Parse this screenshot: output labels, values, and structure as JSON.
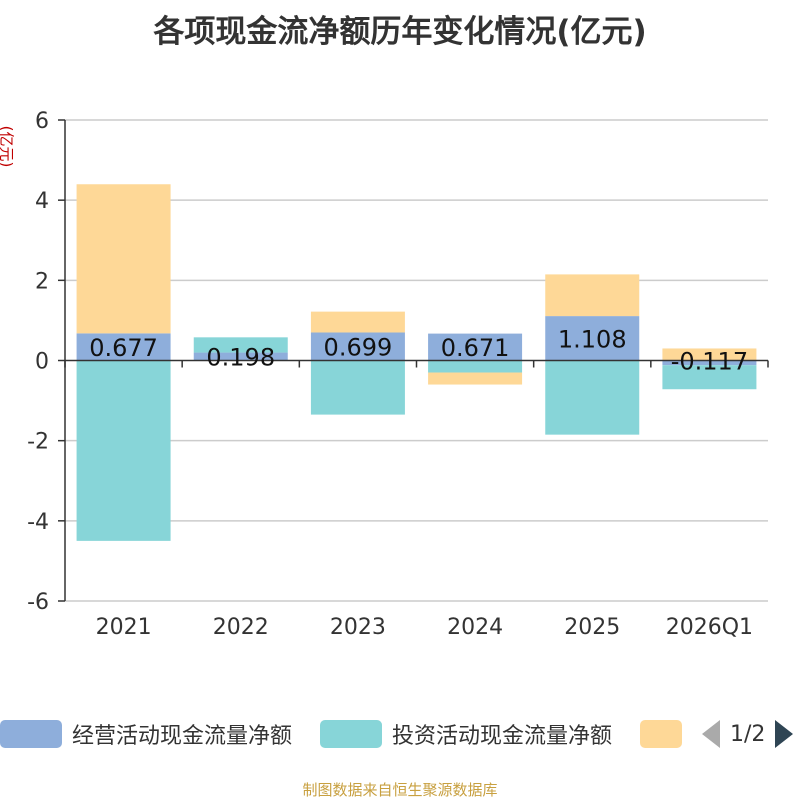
{
  "title": "各项现金流净额历年变化情况(亿元)",
  "y_unit": "(亿元)",
  "source": "制图数据来自恒生聚源数据库",
  "legend": {
    "page": "1/2"
  },
  "colors": {
    "operating": "#8eaedb",
    "investing": "#87d5d8",
    "financing": "#fed897",
    "grid": "#cccccc",
    "axis": "#333333"
  },
  "chart_data": {
    "type": "bar",
    "stacked": true,
    "title": "各项现金流净额历年变化情况(亿元)",
    "ylabel": "(亿元)",
    "ylim": [
      -6,
      6
    ],
    "yticks": [
      6,
      4,
      2,
      0,
      -2,
      -4,
      -6
    ],
    "grid": true,
    "categories": [
      "2021",
      "2022",
      "2023",
      "2024",
      "2025",
      "2026Q1"
    ],
    "series": [
      {
        "name": "经营活动现金流量净额",
        "values": [
          0.677,
          0.198,
          0.699,
          0.671,
          1.108,
          -0.117
        ]
      },
      {
        "name": "投资活动现金流量净额",
        "values": [
          -4.5,
          0.38,
          -1.35,
          -0.3,
          -1.85,
          -0.6
        ]
      },
      {
        "name": "",
        "values": [
          3.72,
          0,
          0.52,
          -0.3,
          1.04,
          0.3
        ]
      }
    ],
    "data_labels": [
      "0.677",
      "0.198",
      "0.699",
      "0.671",
      "1.108",
      "-0.117"
    ]
  }
}
